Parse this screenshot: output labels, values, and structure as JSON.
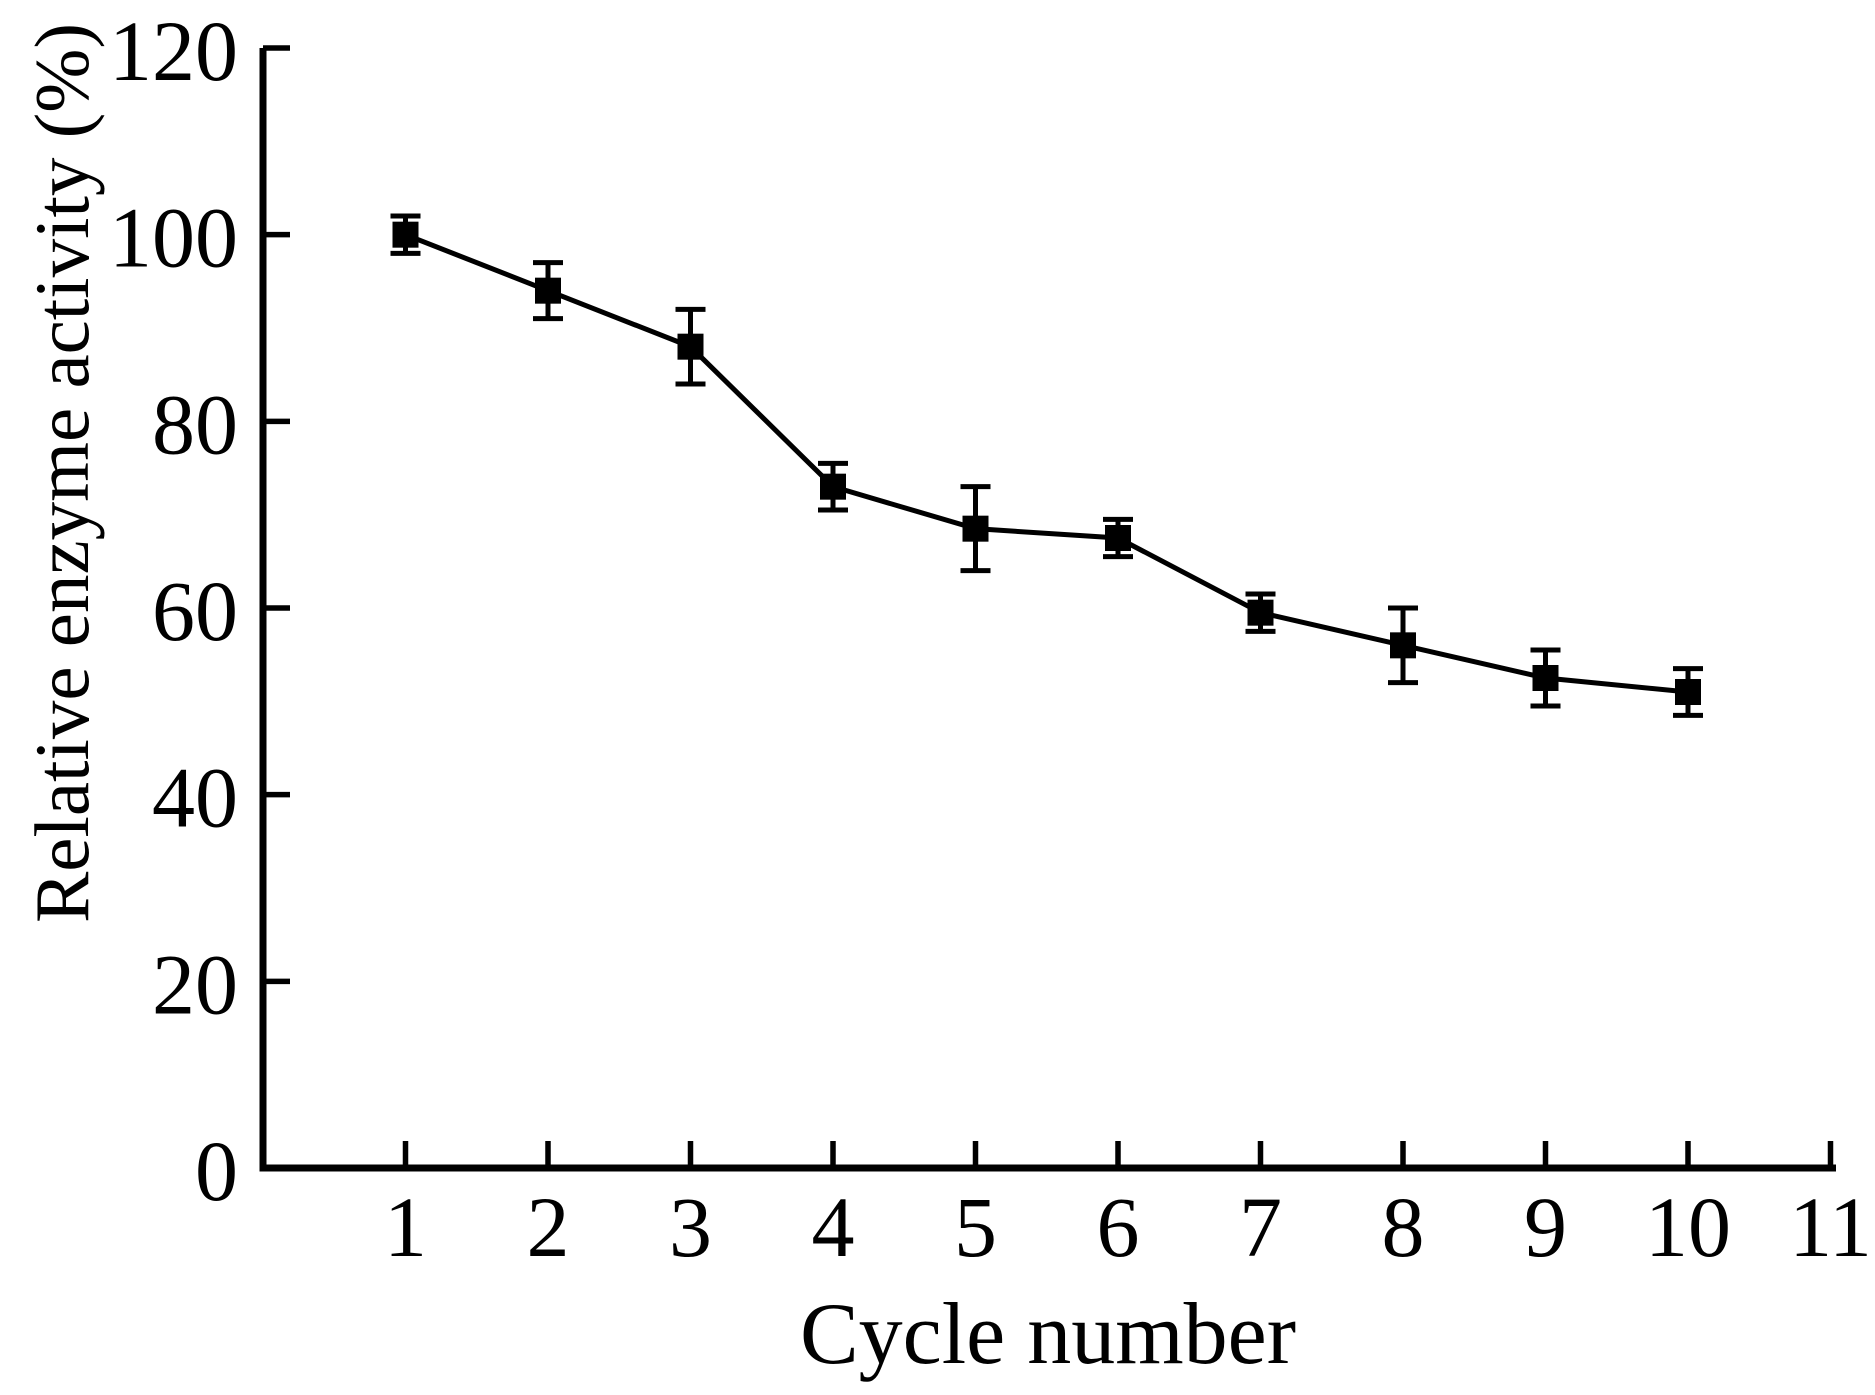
{
  "chart_data": {
    "type": "line",
    "title": "",
    "xlabel": "Cycle number",
    "ylabel": "Relative enzyme activity (%)",
    "x": [
      1,
      2,
      3,
      4,
      5,
      6,
      7,
      8,
      9,
      10
    ],
    "series": [
      {
        "name": "relative-enzyme-activity",
        "values": [
          100,
          94,
          88,
          73,
          68.5,
          67.5,
          59.5,
          56,
          52.5,
          51
        ],
        "errors": [
          2,
          3,
          4,
          2.5,
          4.5,
          2,
          2,
          4,
          3,
          2.5
        ]
      }
    ],
    "xticks": [
      1,
      2,
      3,
      4,
      5,
      6,
      7,
      8,
      9,
      10,
      11
    ],
    "yticks": [
      0,
      20,
      40,
      60,
      80,
      100,
      120
    ],
    "xlim": [
      0,
      11
    ],
    "ylim": [
      0,
      120
    ],
    "grid": false,
    "legend": null,
    "marker": "filled-square",
    "line_style": "solid",
    "line_color": "#000000",
    "marker_color": "#000000",
    "axis_color": "#000000",
    "background_color": "#ffffff"
  }
}
